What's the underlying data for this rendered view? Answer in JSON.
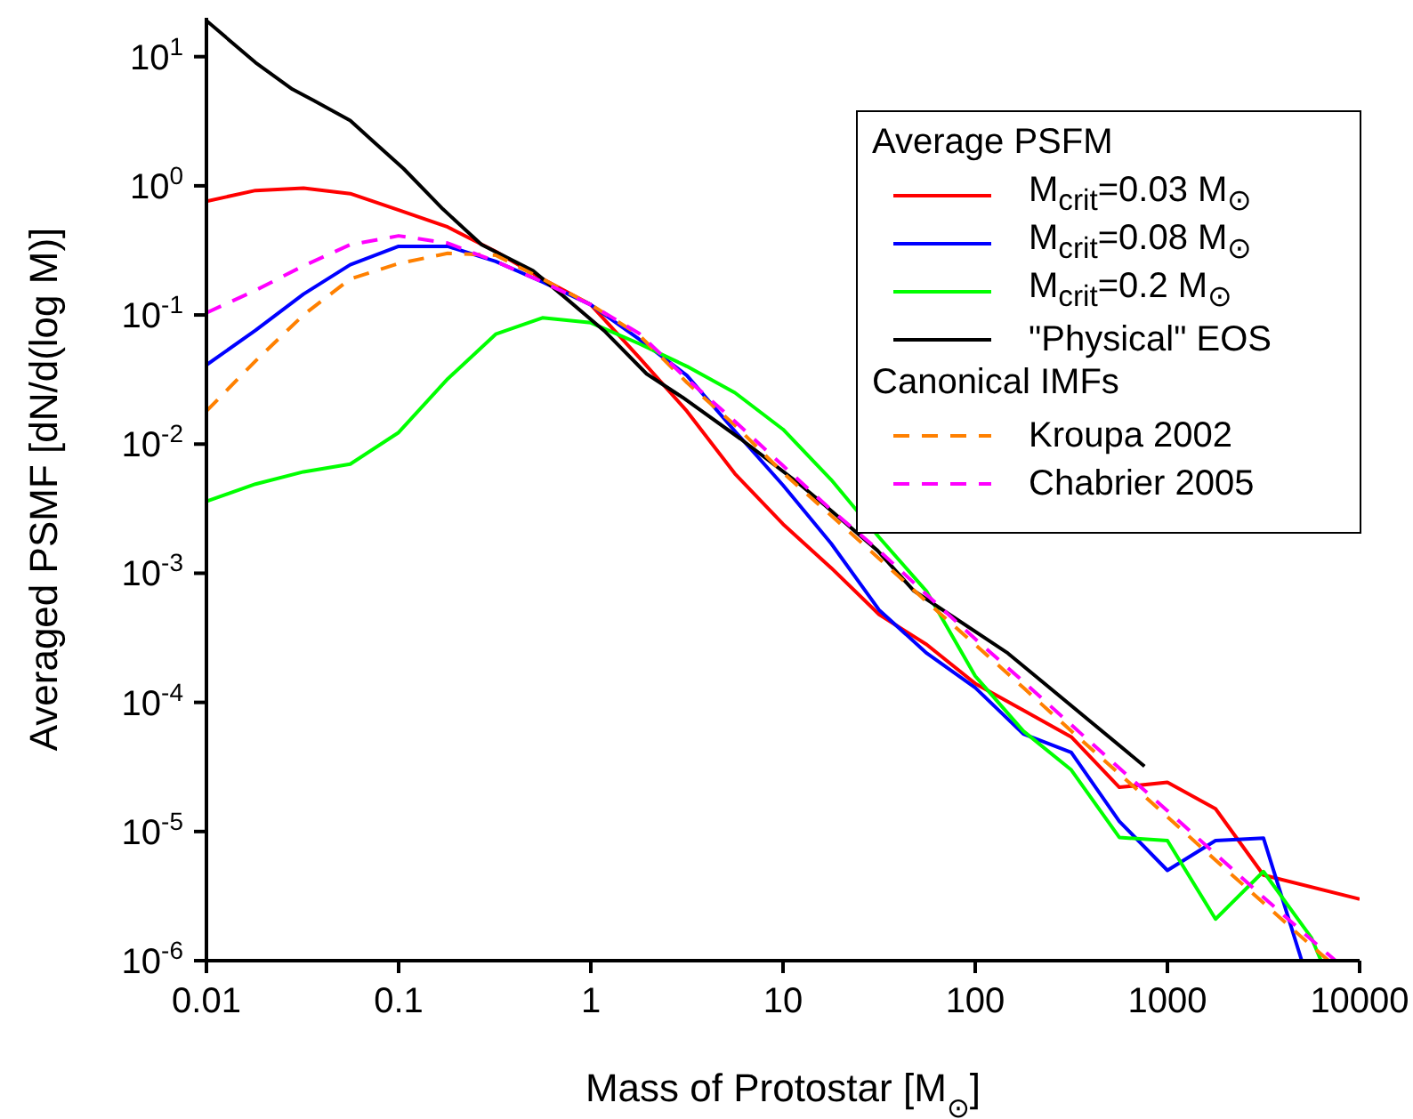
{
  "chart_data": {
    "type": "line",
    "xlabel": "Mass of Protostar [M$_{⊙}$]",
    "ylabel": "Averaged PSMF [dN/d(log M)]",
    "legend_title": "Average PSFM",
    "annotations": [
      "Canonical IMFs"
    ],
    "log": "xy",
    "legend": "top right",
    "marker": "none",
    "xlim": [
      0.01,
      10000
    ],
    "xticks": [
      0.01,
      0.1,
      1,
      10,
      100,
      1000,
      10000
    ],
    "ylim": [
      1e-06,
      20
    ],
    "yticks": [
      {
        "value": 1e-06,
        "label": "10$^{-6}$"
      },
      {
        "value": 1e-05,
        "label": "10$^{-5}$"
      },
      {
        "value": 0.0001,
        "label": "10$^{-4}$"
      },
      {
        "value": 0.001,
        "label": "10$^{-3}$"
      },
      {
        "value": 0.01,
        "label": "10$^{-2}$"
      },
      {
        "value": 0.1,
        "label": "10$^{-1}$"
      },
      {
        "value": 1,
        "label": "10$^{0}$"
      },
      {
        "value": 10,
        "label": "10$^{1}$"
      }
    ],
    "series": [
      {
        "name": "M$_{crit}$=0.03 M$_{⊙}$",
        "color": "#ff0000",
        "line_style": "solid",
        "x": [
          0.01,
          0.018,
          0.032,
          0.056,
          0.1,
          0.18,
          0.32,
          0.56,
          1,
          1.78,
          3.16,
          5.62,
          10,
          17.8,
          31.6,
          56,
          100,
          178,
          316,
          562,
          1000,
          1780,
          3160,
          10000
        ],
        "values": [
          0.76,
          0.92,
          0.96,
          0.87,
          0.65,
          0.48,
          0.31,
          0.19,
          0.12,
          0.047,
          0.018,
          0.0059,
          0.0024,
          0.0011,
          0.00048,
          0.00028,
          0.00014,
          8.7e-05,
          5.4e-05,
          2.2e-05,
          2.4e-05,
          1.5e-05,
          4.6e-06,
          3e-06
        ]
      },
      {
        "name": "M$_{crit}$=0.08 M$_{⊙}$",
        "color": "#0000ff",
        "line_style": "solid",
        "x": [
          0.01,
          0.018,
          0.032,
          0.056,
          0.1,
          0.18,
          0.32,
          0.56,
          1,
          1.78,
          3.16,
          5.62,
          10,
          17.8,
          31.6,
          56,
          100,
          178,
          316,
          562,
          1000,
          1780,
          3160,
          5000
        ],
        "values": [
          0.041,
          0.076,
          0.145,
          0.245,
          0.34,
          0.34,
          0.26,
          0.18,
          0.12,
          0.065,
          0.034,
          0.0126,
          0.0048,
          0.0017,
          0.00052,
          0.00024,
          0.00013,
          5.7e-05,
          4.1e-05,
          1.2e-05,
          5e-06,
          8.5e-06,
          8.9e-06,
          1e-06
        ]
      },
      {
        "name": "M$_{crit}$=0.2 M$_{⊙}$",
        "color": "#00ff00",
        "line_style": "solid",
        "x": [
          0.01,
          0.018,
          0.032,
          0.056,
          0.1,
          0.18,
          0.32,
          0.56,
          1,
          1.78,
          3.16,
          5.62,
          10,
          17.8,
          31.6,
          56,
          100,
          178,
          316,
          562,
          1000,
          1780,
          3160,
          5620,
          6300
        ],
        "values": [
          0.0036,
          0.0049,
          0.0061,
          0.007,
          0.0123,
          0.032,
          0.071,
          0.095,
          0.087,
          0.06,
          0.04,
          0.025,
          0.013,
          0.0053,
          0.0019,
          0.00072,
          0.00016,
          6e-05,
          3e-05,
          9e-06,
          8.5e-06,
          2.1e-06,
          4.9e-06,
          1.5e-06,
          1e-06
        ]
      },
      {
        "name": "\"Physical\" EOS",
        "color": "#000000",
        "line_style": "solid",
        "x": [
          0.01,
          0.018,
          0.028,
          0.036,
          0.056,
          0.074,
          0.106,
          0.17,
          0.27,
          0.5,
          0.72,
          1.19,
          1.95,
          3,
          6,
          12,
          16,
          31,
          48,
          148,
          760
        ],
        "values": [
          19,
          9,
          5.6,
          4.6,
          3.2,
          2.2,
          1.36,
          0.66,
          0.35,
          0.22,
          0.14,
          0.074,
          0.035,
          0.023,
          0.011,
          0.005,
          0.0035,
          0.0015,
          0.00073,
          0.00024,
          3.2e-05
        ]
      },
      {
        "name": "Kroupa 2002",
        "color": "#ff8000",
        "line_style": "dashed",
        "x": [
          0.01,
          0.018,
          0.032,
          0.056,
          0.1,
          0.18,
          0.32,
          0.56,
          1,
          1.78,
          3.16,
          5.62,
          10,
          17.8,
          31.6,
          56,
          100,
          178,
          316,
          562,
          1000,
          1780,
          3160,
          5620,
          6900
        ],
        "values": [
          0.018,
          0.044,
          0.1,
          0.19,
          0.25,
          0.3,
          0.29,
          0.19,
          0.12,
          0.07,
          0.03,
          0.014,
          0.006,
          0.0028,
          0.0013,
          0.0006,
          0.00028,
          0.00013,
          6e-05,
          2.8e-05,
          1.3e-05,
          6e-06,
          2.8e-06,
          1.3e-06,
          1e-06
        ]
      },
      {
        "name": "Chabrier 2005",
        "color": "#ff00ff",
        "line_style": "dashed",
        "x": [
          0.01,
          0.018,
          0.032,
          0.056,
          0.1,
          0.18,
          0.32,
          0.56,
          1,
          1.78,
          3.16,
          5.62,
          10,
          17.8,
          31.6,
          56,
          100,
          178,
          316,
          562,
          1000,
          1780,
          3160,
          5620,
          7500
        ],
        "values": [
          0.104,
          0.155,
          0.24,
          0.35,
          0.41,
          0.36,
          0.26,
          0.18,
          0.12,
          0.072,
          0.032,
          0.015,
          0.0068,
          0.0031,
          0.0015,
          0.00068,
          0.00031,
          0.000145,
          6.7e-05,
          3.1e-05,
          1.45e-05,
          6.7e-06,
          3.1e-06,
          1.45e-06,
          1e-06
        ]
      }
    ]
  }
}
